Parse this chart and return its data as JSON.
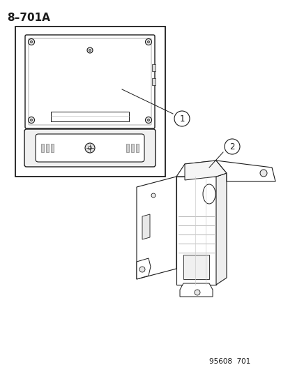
{
  "title": "8–701A",
  "footer": "95608  701",
  "bg_color": "#ffffff",
  "line_color": "#1a1a1a",
  "part1_label": "1",
  "part2_label": "2",
  "title_fontsize": 11,
  "footer_fontsize": 7.5,
  "label_fontsize": 8.5
}
